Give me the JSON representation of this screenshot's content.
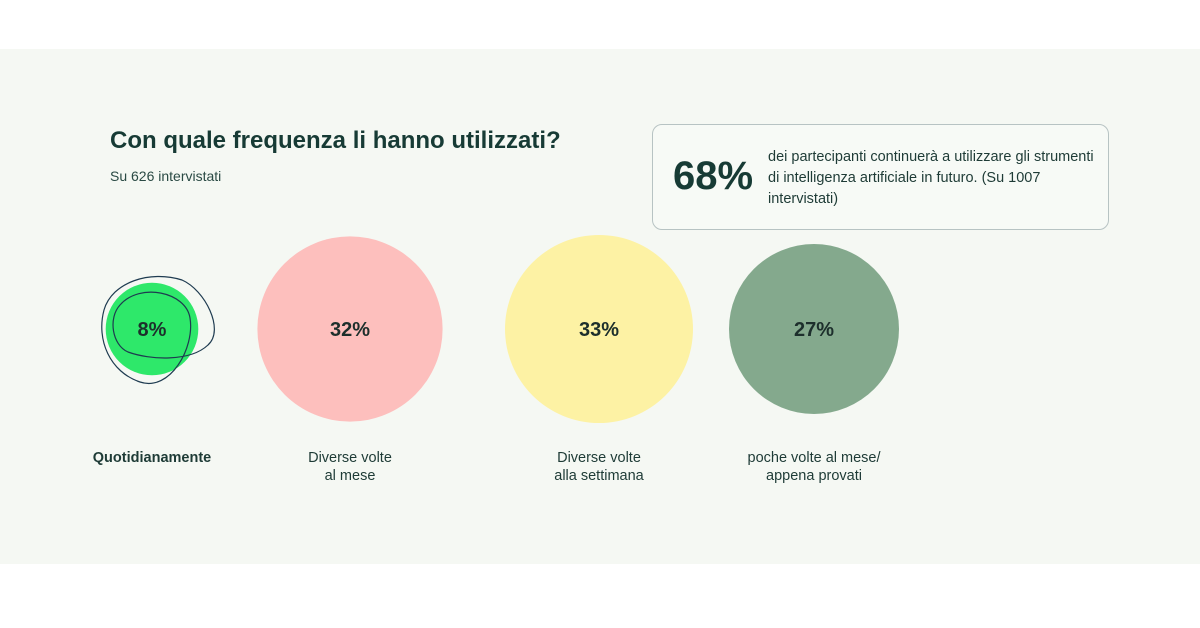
{
  "title": "Con quale frequenza li hanno utilizzati?",
  "subtitle": "Su 626 intervistati",
  "highlight": {
    "value": "68%",
    "text": "dei partecipanti continuerà a utilizzare gli strumenti di intelligenza artificiale in futuro. (Su 1007 intervistati)"
  },
  "colors": {
    "background": "#f5f8f3",
    "text": "#173b35",
    "quotidianamente": "#2ee86a",
    "diverse_volte_al_mese": "#fdbfbd",
    "diverse_volte_alla_settimana": "#fdf2a4",
    "poche_volte": "#84a98d"
  },
  "chart_data": {
    "type": "bubble",
    "unit": "%",
    "categories": [
      {
        "label_lines": [
          "Quotidianamente"
        ],
        "value": 8,
        "display": "8%",
        "color": "#2ee86a",
        "emphasis": true
      },
      {
        "label_lines": [
          "Diverse volte",
          "al mese"
        ],
        "value": 32,
        "display": "32%",
        "color": "#fdbfbd",
        "emphasis": false
      },
      {
        "label_lines": [
          "Diverse volte",
          "alla settimana"
        ],
        "value": 33,
        "display": "33%",
        "color": "#fdf2a4",
        "emphasis": false
      },
      {
        "label_lines": [
          "poche volte al mese/",
          "appena provati"
        ],
        "value": 27,
        "display": "27%",
        "color": "#84a98d",
        "emphasis": false
      }
    ]
  }
}
